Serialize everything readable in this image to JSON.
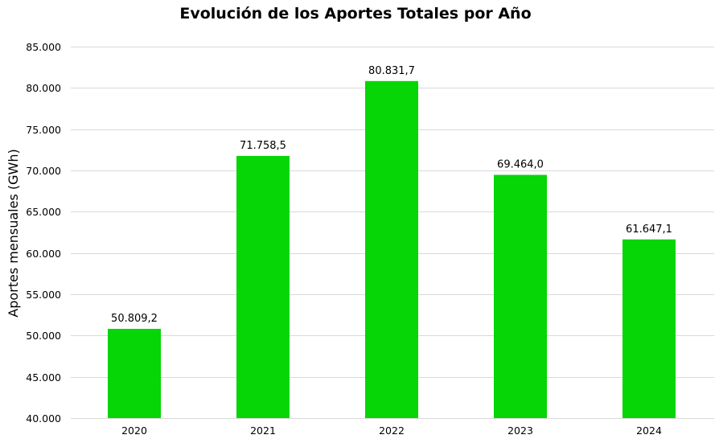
{
  "chart_data": {
    "type": "bar",
    "title": "Evolución de los Aportes Totales por Año",
    "xlabel": "",
    "ylabel": "Aportes mensuales (GWh)",
    "categories": [
      "2020",
      "2021",
      "2022",
      "2023",
      "2024"
    ],
    "values": [
      50809.2,
      71758.5,
      80831.7,
      69464.0,
      61647.1
    ],
    "data_labels": [
      "50.809,2",
      "71.758,5",
      "80.831,7",
      "69.464,0",
      "61.647,1"
    ],
    "ylim": [
      40000,
      85000
    ],
    "yticks": [
      40000,
      45000,
      50000,
      55000,
      60000,
      65000,
      70000,
      75000,
      80000,
      85000
    ],
    "ytick_labels": [
      "40.000",
      "45.000",
      "50.000",
      "55.000",
      "60.000",
      "65.000",
      "70.000",
      "75.000",
      "80.000",
      "85.000"
    ],
    "grid": true,
    "bar_color": "#06d606",
    "grid_color": "#d9d9d9"
  }
}
